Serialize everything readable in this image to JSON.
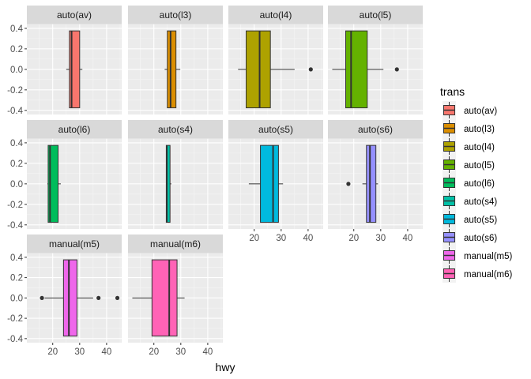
{
  "chart_data": {
    "type": "boxplot",
    "facet_var": "trans",
    "xlabel": "hwy",
    "ylabel": "",
    "xlim": [
      10.4,
      45.6
    ],
    "ylim": [
      -0.44,
      0.44
    ],
    "x_ticks": [
      20,
      30,
      40
    ],
    "x_tick_labels": [
      "20",
      "30",
      "40"
    ],
    "y_ticks": [
      0.4,
      0.2,
      0.0,
      -0.2,
      -0.4
    ],
    "y_tick_labels": [
      "0.4",
      "0.2",
      "0.0",
      "-0.2",
      "-0.4"
    ],
    "grid": true,
    "legend_position": "right",
    "legend_title": "trans",
    "panels": [
      {
        "name": "auto(av)",
        "color": "#F8766D",
        "whisker_low": 25,
        "q1": 26.2,
        "median": 27,
        "q3": 30,
        "whisker_high": 31,
        "outliers": []
      },
      {
        "name": "auto(l3)",
        "color": "#DB8E00",
        "whisker_low": 24,
        "q1": 25,
        "median": 26.2,
        "q3": 28.2,
        "whisker_high": 29.8,
        "outliers": []
      },
      {
        "name": "auto(l4)",
        "color": "#AEA200",
        "whisker_low": 14,
        "q1": 17,
        "median": 22,
        "q3": 26,
        "whisker_high": 35,
        "outliers": [
          41
        ]
      },
      {
        "name": "auto(l5)",
        "color": "#64B200",
        "whisker_low": 12,
        "q1": 17,
        "median": 19,
        "q3": 25,
        "whisker_high": 31,
        "outliers": [
          36
        ]
      },
      {
        "name": "auto(l6)",
        "color": "#00BD5C",
        "whisker_low": 18,
        "q1": 18.3,
        "median": 19,
        "q3": 22,
        "whisker_high": 23,
        "outliers": []
      },
      {
        "name": "auto(s4)",
        "color": "#00C1A7",
        "whisker_low": 24.6,
        "q1": 24.6,
        "median": 24.8,
        "q3": 26,
        "whisker_high": 26.5,
        "outliers": []
      },
      {
        "name": "auto(s5)",
        "color": "#00BADE",
        "whisker_low": 18,
        "q1": 22.3,
        "median": 27,
        "q3": 29,
        "whisker_high": 30.7,
        "outliers": []
      },
      {
        "name": "auto(s6)",
        "color": "#9590FF",
        "whisker_low": 23.2,
        "q1": 24.7,
        "median": 26,
        "q3": 28.2,
        "whisker_high": 29,
        "outliers": [
          18
        ]
      },
      {
        "name": "manual(m5)",
        "color": "#EF67EB",
        "whisker_low": 17,
        "q1": 24,
        "median": 26,
        "q3": 29,
        "whisker_high": 35,
        "outliers": [
          16,
          37,
          44
        ]
      },
      {
        "name": "manual(m6)",
        "color": "#FF63B6",
        "whisker_low": 12,
        "q1": 19.3,
        "median": 25.7,
        "q3": 28.6,
        "whisker_high": 31.4,
        "outliers": []
      }
    ]
  }
}
